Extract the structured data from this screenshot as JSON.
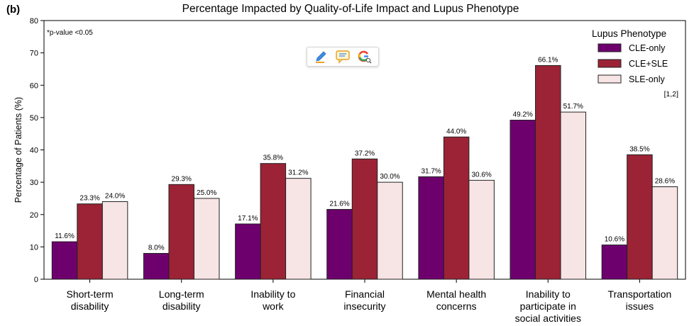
{
  "panel_label": "(b)",
  "chart_data": {
    "type": "bar",
    "title": "Percentage Impacted by Quality-of-Life Impact and Lupus Phenotype",
    "xlabel": "",
    "ylabel": "Percentage of Patients (%)",
    "ylim": [
      0,
      80
    ],
    "yticks": [
      "0",
      "10",
      "20",
      "30",
      "40",
      "50",
      "60",
      "70",
      "80"
    ],
    "grid": false,
    "annotation": "*p-value <0.05",
    "reference": "[1,2]",
    "legend": {
      "title": "Lupus Phenotype",
      "position": "top-right"
    },
    "categories": [
      [
        "Short-term",
        "disability"
      ],
      [
        "Long-term",
        "disability"
      ],
      [
        "Inability to",
        "work"
      ],
      [
        "Financial",
        "insecurity"
      ],
      [
        "Mental health",
        "concerns"
      ],
      [
        "Inability to",
        "participate in",
        "social activities"
      ],
      [
        "Transportation",
        "issues"
      ]
    ],
    "series": [
      {
        "name": "CLE-only",
        "color": "#6e006e",
        "values": [
          11.6,
          8.0,
          17.1,
          21.6,
          31.7,
          49.2,
          10.6
        ],
        "labels": [
          "11.6%",
          "8.0%",
          "17.1%",
          "21.6%",
          "31.7%",
          "49.2%",
          "10.6%"
        ]
      },
      {
        "name": "CLE+SLE",
        "color": "#9b2335",
        "values": [
          23.3,
          29.3,
          35.8,
          37.2,
          44.0,
          66.1,
          38.5
        ],
        "labels": [
          "23.3%",
          "29.3%",
          "35.8%",
          "37.2%",
          "44.0%",
          "66.1%",
          "38.5%"
        ]
      },
      {
        "name": "SLE-only",
        "color": "#f7e4e4",
        "values": [
          24.0,
          25.0,
          31.2,
          30.0,
          30.6,
          51.7,
          28.6
        ],
        "labels": [
          "24.0%",
          "25.0%",
          "31.2%",
          "30.0%",
          "30.6%",
          "51.7%",
          "28.6%"
        ]
      }
    ]
  },
  "toolbar": {
    "icons": [
      "pencil-icon",
      "comment-icon",
      "google-search-icon"
    ]
  }
}
